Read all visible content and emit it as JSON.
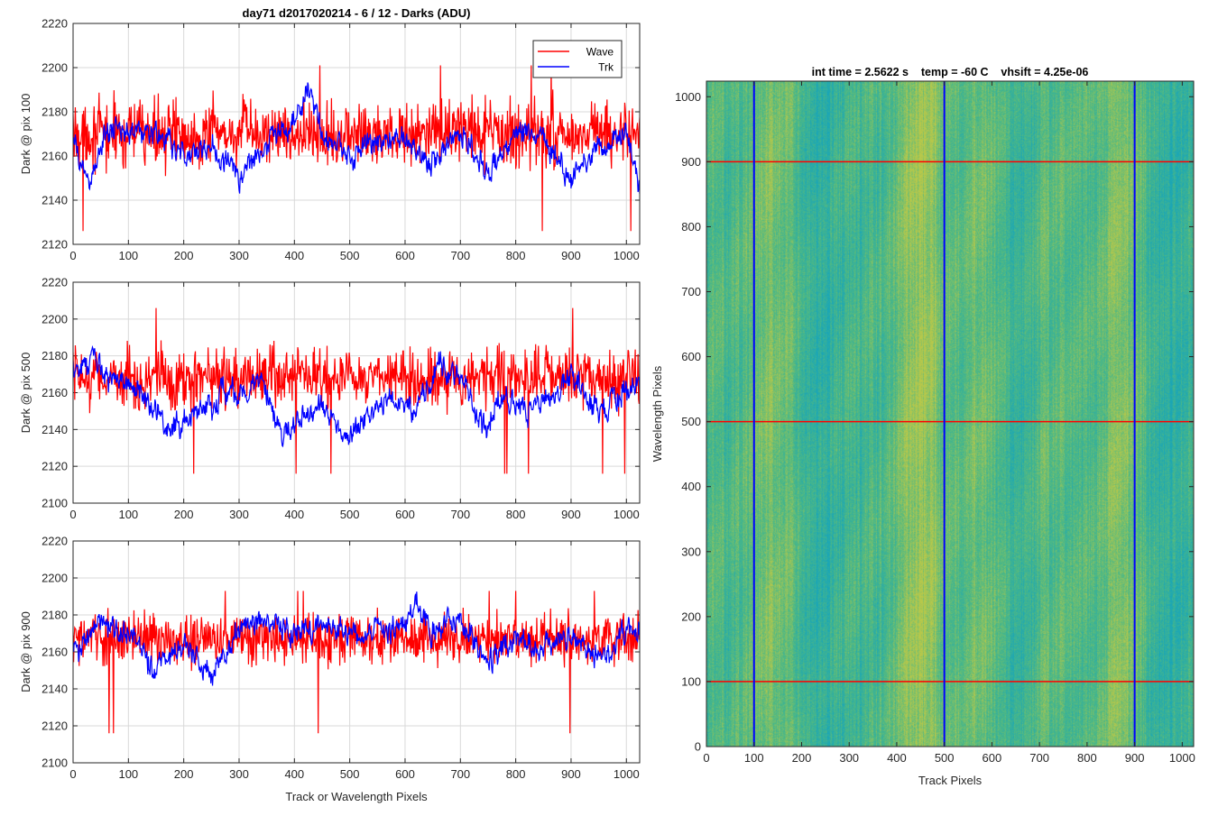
{
  "figure_title": "day71 d2017020214 - 6 / 12 - Darks (ADU)",
  "colors": {
    "wave": "#ff0000",
    "trk": "#0000ff",
    "heat_low": "#1aa6b7",
    "heat_mid": "#4fb983",
    "heat_high": "#b8c84a"
  },
  "chart_data": [
    {
      "type": "line",
      "ylabel": "Dark @ pix 100",
      "xlim": [
        0,
        1024
      ],
      "ylim": [
        2120,
        2220
      ],
      "x_ticks": [
        0,
        100,
        200,
        300,
        400,
        500,
        600,
        700,
        800,
        900,
        1000
      ],
      "y_ticks": [
        2120,
        2140,
        2160,
        2180,
        2200,
        2220
      ],
      "grid": true,
      "legend": {
        "position": "top-right",
        "entries": [
          "Wave",
          "Trk"
        ]
      },
      "series": [
        {
          "name": "Wave",
          "color": "#ff0000",
          "base": 2170,
          "noise": 11,
          "min": 2126,
          "max": 2201
        },
        {
          "name": "Trk",
          "color": "#0000ff",
          "x": [
            0,
            30,
            60,
            100,
            150,
            200,
            250,
            300,
            350,
            400,
            425,
            450,
            500,
            550,
            600,
            650,
            700,
            750,
            800,
            850,
            900,
            950,
            1000,
            1024
          ],
          "y": [
            2165,
            2148,
            2170,
            2172,
            2170,
            2160,
            2165,
            2150,
            2166,
            2175,
            2192,
            2168,
            2160,
            2166,
            2168,
            2157,
            2172,
            2150,
            2172,
            2170,
            2150,
            2166,
            2170,
            2145
          ],
          "noise": 5
        }
      ]
    },
    {
      "type": "line",
      "ylabel": "Dark @ pix 500",
      "xlim": [
        0,
        1024
      ],
      "ylim": [
        2100,
        2220
      ],
      "x_ticks": [
        0,
        100,
        200,
        300,
        400,
        500,
        600,
        700,
        800,
        900,
        1000
      ],
      "y_ticks": [
        2100,
        2120,
        2140,
        2160,
        2180,
        2200,
        2220
      ],
      "grid": true,
      "series": [
        {
          "name": "Wave",
          "color": "#ff0000",
          "base": 2168,
          "noise": 12,
          "min": 2116,
          "max": 2206
        },
        {
          "name": "Trk",
          "color": "#0000ff",
          "x": [
            0,
            40,
            80,
            120,
            170,
            220,
            270,
            300,
            340,
            380,
            420,
            460,
            500,
            540,
            580,
            620,
            660,
            700,
            740,
            780,
            820,
            860,
            900,
            950,
            1000,
            1024
          ],
          "y": [
            2175,
            2176,
            2165,
            2163,
            2140,
            2148,
            2160,
            2160,
            2165,
            2135,
            2150,
            2150,
            2135,
            2150,
            2158,
            2150,
            2176,
            2168,
            2140,
            2160,
            2150,
            2160,
            2170,
            2148,
            2165,
            2162
          ],
          "noise": 6
        }
      ]
    },
    {
      "type": "line",
      "ylabel": "Dark @ pix 900",
      "xlabel": "Track or Wavelength Pixels",
      "xlim": [
        0,
        1024
      ],
      "ylim": [
        2100,
        2220
      ],
      "x_ticks": [
        0,
        100,
        200,
        300,
        400,
        500,
        600,
        700,
        800,
        900,
        1000
      ],
      "y_ticks": [
        2100,
        2120,
        2140,
        2160,
        2180,
        2200,
        2220
      ],
      "grid": true,
      "series": [
        {
          "name": "Wave",
          "color": "#ff0000",
          "base": 2167,
          "noise": 10,
          "min": 2116,
          "max": 2193
        },
        {
          "name": "Trk",
          "color": "#0000ff",
          "x": [
            0,
            50,
            100,
            150,
            200,
            250,
            300,
            350,
            400,
            450,
            500,
            550,
            600,
            620,
            650,
            700,
            750,
            800,
            850,
            900,
            950,
            1000,
            1024
          ],
          "y": [
            2160,
            2175,
            2170,
            2150,
            2165,
            2150,
            2172,
            2178,
            2170,
            2175,
            2170,
            2170,
            2172,
            2188,
            2172,
            2176,
            2155,
            2168,
            2162,
            2170,
            2158,
            2168,
            2172
          ],
          "noise": 6
        }
      ]
    },
    {
      "type": "heatmap",
      "title": "int time = 2.5622 s    temp = -60 C    vhsift = 4.25e-06",
      "xlabel": "Track Pixels",
      "ylabel": "Wavelength Pixels",
      "xlim": [
        0,
        1024
      ],
      "ylim": [
        0,
        1024
      ],
      "x_ticks": [
        0,
        100,
        200,
        300,
        400,
        500,
        600,
        700,
        800,
        900,
        1000
      ],
      "y_ticks": [
        0,
        100,
        200,
        300,
        400,
        500,
        600,
        700,
        800,
        900,
        1000
      ],
      "vertical_markers": [
        100,
        500,
        900
      ],
      "horizontal_markers": [
        100,
        500,
        900
      ]
    }
  ]
}
